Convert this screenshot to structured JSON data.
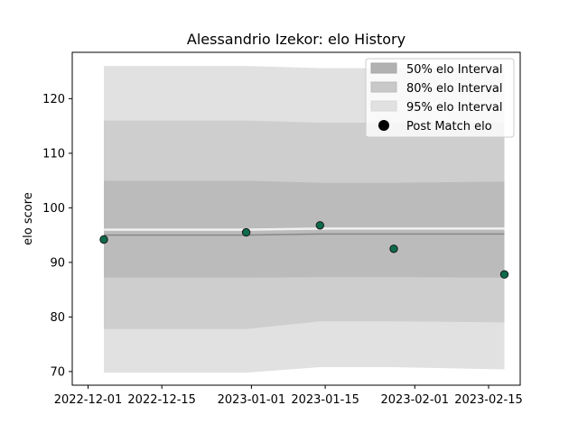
{
  "chart_data": {
    "type": "area",
    "title": "Alessandrio Izekor: elo History",
    "xlabel": "",
    "ylabel": "elo score",
    "x_ticks": [
      "2022-12-01",
      "2022-12-15",
      "2023-01-01",
      "2023-01-15",
      "2023-02-01",
      "2023-02-15"
    ],
    "y_ticks": [
      70,
      80,
      90,
      100,
      110,
      120
    ],
    "xlim": [
      "2022-11-28",
      "2023-02-21"
    ],
    "ylim": [
      67.5,
      128.5
    ],
    "grid": false,
    "legend_position": "top-right",
    "interval_dates": [
      "2022-12-04",
      "2022-12-31",
      "2023-01-14",
      "2023-01-28",
      "2023-02-18"
    ],
    "mean": [
      95.0,
      95.0,
      95.2,
      95.2,
      95.2
    ],
    "bands": [
      {
        "name": "95% elo Interval",
        "color": "#e1e1e1",
        "lower": [
          69.8,
          69.8,
          70.8,
          70.8,
          70.4
        ],
        "upper": [
          126.0,
          126.0,
          125.6,
          125.6,
          125.6
        ]
      },
      {
        "name": "80% elo Interval",
        "color": "#cecece",
        "lower": [
          77.8,
          77.8,
          79.2,
          79.2,
          79.0
        ],
        "upper": [
          116.0,
          116.0,
          115.6,
          115.6,
          115.6
        ]
      },
      {
        "name": "50% elo Interval",
        "color": "#bbbbbb",
        "lower": [
          87.2,
          87.2,
          87.3,
          87.3,
          87.2
        ],
        "upper": [
          105.0,
          105.0,
          104.6,
          104.6,
          104.8
        ]
      }
    ],
    "series": [
      {
        "name": "Post Match elo",
        "x": [
          "2022-12-04",
          "2022-12-31",
          "2023-01-14",
          "2023-01-28",
          "2023-02-18"
        ],
        "values": [
          94.2,
          95.5,
          96.8,
          92.5,
          87.8
        ]
      }
    ],
    "legend": [
      "50% elo Interval",
      "80% elo Interval",
      "95% elo Interval",
      "Post Match elo"
    ],
    "colors": {
      "marker_fill": "#0d6b49",
      "marker_edge": "#1a1a1a",
      "mean_line": "#888888",
      "upper_line": "#f0f0f0"
    }
  }
}
